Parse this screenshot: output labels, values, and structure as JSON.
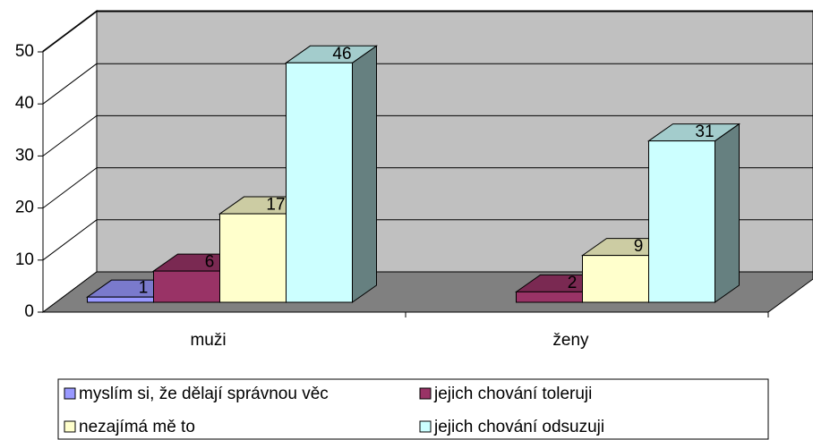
{
  "chart_data": {
    "type": "bar3d",
    "categories": [
      "muži",
      "ženy"
    ],
    "series": [
      {
        "name": "myslím si, že dělají správnou věc",
        "color": "#9999ff",
        "values": [
          1,
          null
        ]
      },
      {
        "name": "jejich chování toleruji",
        "color": "#993366",
        "values": [
          6,
          2
        ]
      },
      {
        "name": "nezajímá mě to",
        "color": "#ffffcc",
        "values": [
          17,
          9
        ]
      },
      {
        "name": "jejich chování odsuzuji",
        "color": "#ccffff",
        "values": [
          46,
          31
        ]
      }
    ],
    "ylim": [
      0,
      50
    ],
    "yticks": [
      0,
      10,
      20,
      30,
      40,
      50
    ],
    "grid": true,
    "legend": "bottom"
  }
}
